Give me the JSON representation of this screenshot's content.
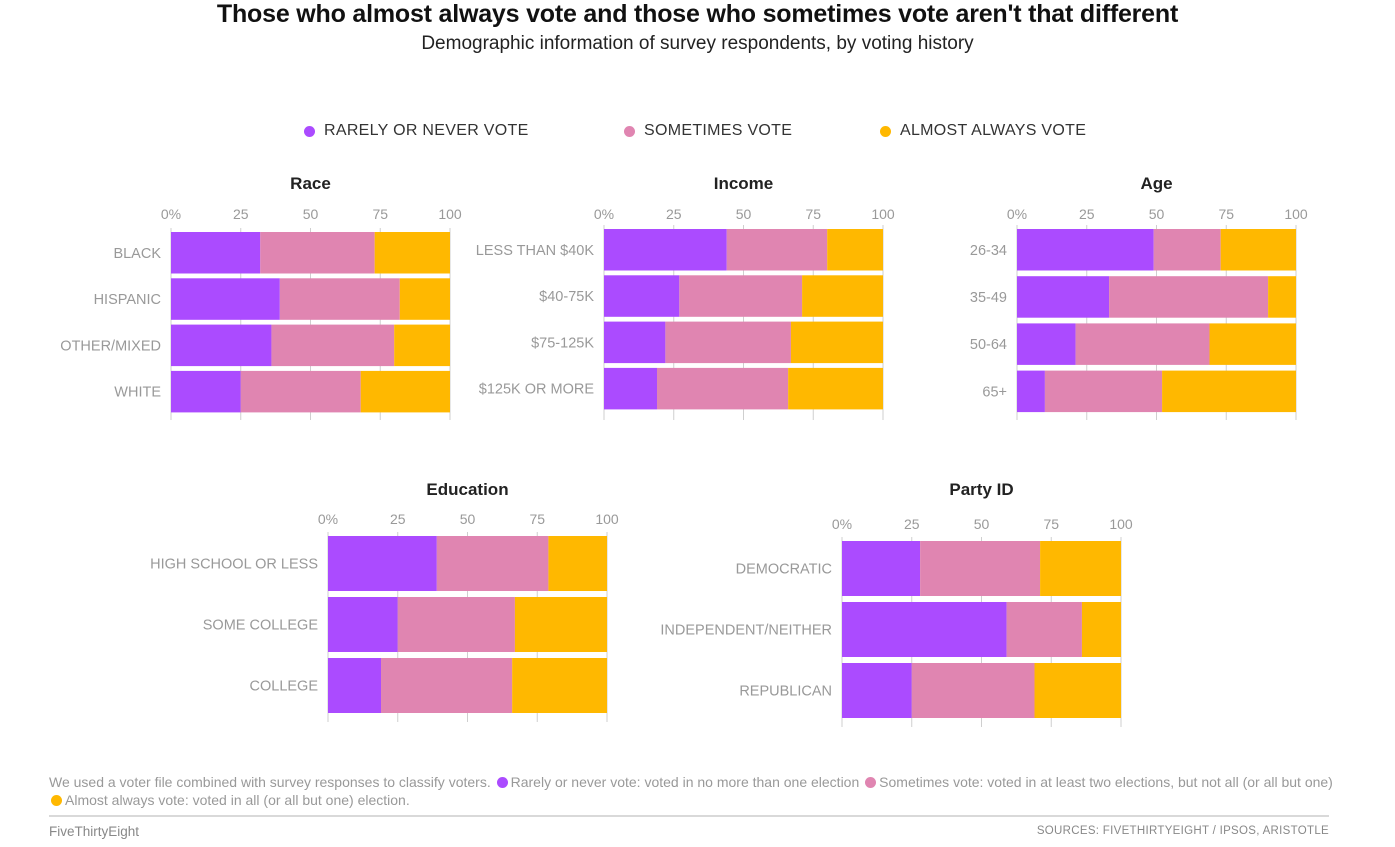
{
  "title": "Those who almost always vote and those who sometimes vote aren't that different",
  "subtitle": "Demographic information of survey respondents, by voting history",
  "colors": {
    "rarely": "#ab4bff",
    "sometimes": "#e085b1",
    "always": "#ffb800"
  },
  "legend": [
    {
      "key": "rarely",
      "label": "RARELY OR NEVER VOTE"
    },
    {
      "key": "sometimes",
      "label": "SOMETIMES VOTE"
    },
    {
      "key": "always",
      "label": "ALMOST ALWAYS VOTE"
    }
  ],
  "chart_data": [
    {
      "type": "bar",
      "stacked": true,
      "orientation": "horizontal",
      "title": "Race",
      "xlim": [
        0,
        100
      ],
      "xticks": [
        "0%",
        "25",
        "50",
        "75",
        "100"
      ],
      "categories": [
        "BLACK",
        "HISPANIC",
        "OTHER/MIXED",
        "WHITE"
      ],
      "series": [
        {
          "name": "RARELY OR NEVER VOTE",
          "values": [
            32,
            39,
            36,
            25
          ]
        },
        {
          "name": "SOMETIMES VOTE",
          "values": [
            41,
            43,
            44,
            43
          ]
        },
        {
          "name": "ALMOST ALWAYS VOTE",
          "values": [
            27,
            18,
            20,
            32
          ]
        }
      ]
    },
    {
      "type": "bar",
      "stacked": true,
      "orientation": "horizontal",
      "title": "Income",
      "xlim": [
        0,
        100
      ],
      "xticks": [
        "0%",
        "25",
        "50",
        "75",
        "100"
      ],
      "categories": [
        "LESS THAN $40K",
        "$40-75K",
        "$75-125K",
        "$125K OR MORE"
      ],
      "series": [
        {
          "name": "RARELY OR NEVER VOTE",
          "values": [
            44,
            27,
            22,
            19
          ]
        },
        {
          "name": "SOMETIMES VOTE",
          "values": [
            36,
            44,
            45,
            47
          ]
        },
        {
          "name": "ALMOST ALWAYS VOTE",
          "values": [
            20,
            29,
            33,
            34
          ]
        }
      ]
    },
    {
      "type": "bar",
      "stacked": true,
      "orientation": "horizontal",
      "title": "Age",
      "xlim": [
        0,
        100
      ],
      "xticks": [
        "0%",
        "25",
        "50",
        "75",
        "100"
      ],
      "categories": [
        "26-34",
        "35-49",
        "50-64",
        "65+"
      ],
      "series": [
        {
          "name": "RARELY OR NEVER VOTE",
          "values": [
            49,
            33,
            21,
            10
          ]
        },
        {
          "name": "SOMETIMES VOTE",
          "values": [
            24,
            57,
            48,
            42
          ]
        },
        {
          "name": "ALMOST ALWAYS VOTE",
          "values": [
            27,
            10,
            31,
            48
          ]
        }
      ]
    },
    {
      "type": "bar",
      "stacked": true,
      "orientation": "horizontal",
      "title": "Education",
      "xlim": [
        0,
        100
      ],
      "xticks": [
        "0%",
        "25",
        "50",
        "75",
        "100"
      ],
      "categories": [
        "HIGH SCHOOL OR LESS",
        "SOME COLLEGE",
        "COLLEGE"
      ],
      "series": [
        {
          "name": "RARELY OR NEVER VOTE",
          "values": [
            39,
            25,
            19
          ]
        },
        {
          "name": "SOMETIMES VOTE",
          "values": [
            40,
            42,
            47
          ]
        },
        {
          "name": "ALMOST ALWAYS VOTE",
          "values": [
            21,
            33,
            34
          ]
        }
      ]
    },
    {
      "type": "bar",
      "stacked": true,
      "orientation": "horizontal",
      "title": "Party ID",
      "xlim": [
        0,
        100
      ],
      "xticks": [
        "0%",
        "25",
        "50",
        "75",
        "100"
      ],
      "categories": [
        "DEMOCRATIC",
        "INDEPENDENT/NEITHER",
        "REPUBLICAN"
      ],
      "series": [
        {
          "name": "RARELY OR NEVER VOTE",
          "values": [
            28,
            59,
            25
          ]
        },
        {
          "name": "SOMETIMES VOTE",
          "values": [
            43,
            27,
            44
          ]
        },
        {
          "name": "ALMOST ALWAYS VOTE",
          "values": [
            29,
            14,
            31
          ]
        }
      ]
    }
  ],
  "footnote": {
    "intro": "We used a voter file combined with survey responses to classify voters.",
    "rarely": "Rarely or never vote: voted in no more than one election",
    "sometimes": "Sometimes vote: voted in at least two elections, but not all (or all but one)",
    "always": "Almost always vote: voted in all (or all but one) election."
  },
  "brand": "FiveThirtyEight",
  "sources": "SOURCES: FIVETHIRTYEIGHT / IPSOS, ARISTOTLE"
}
